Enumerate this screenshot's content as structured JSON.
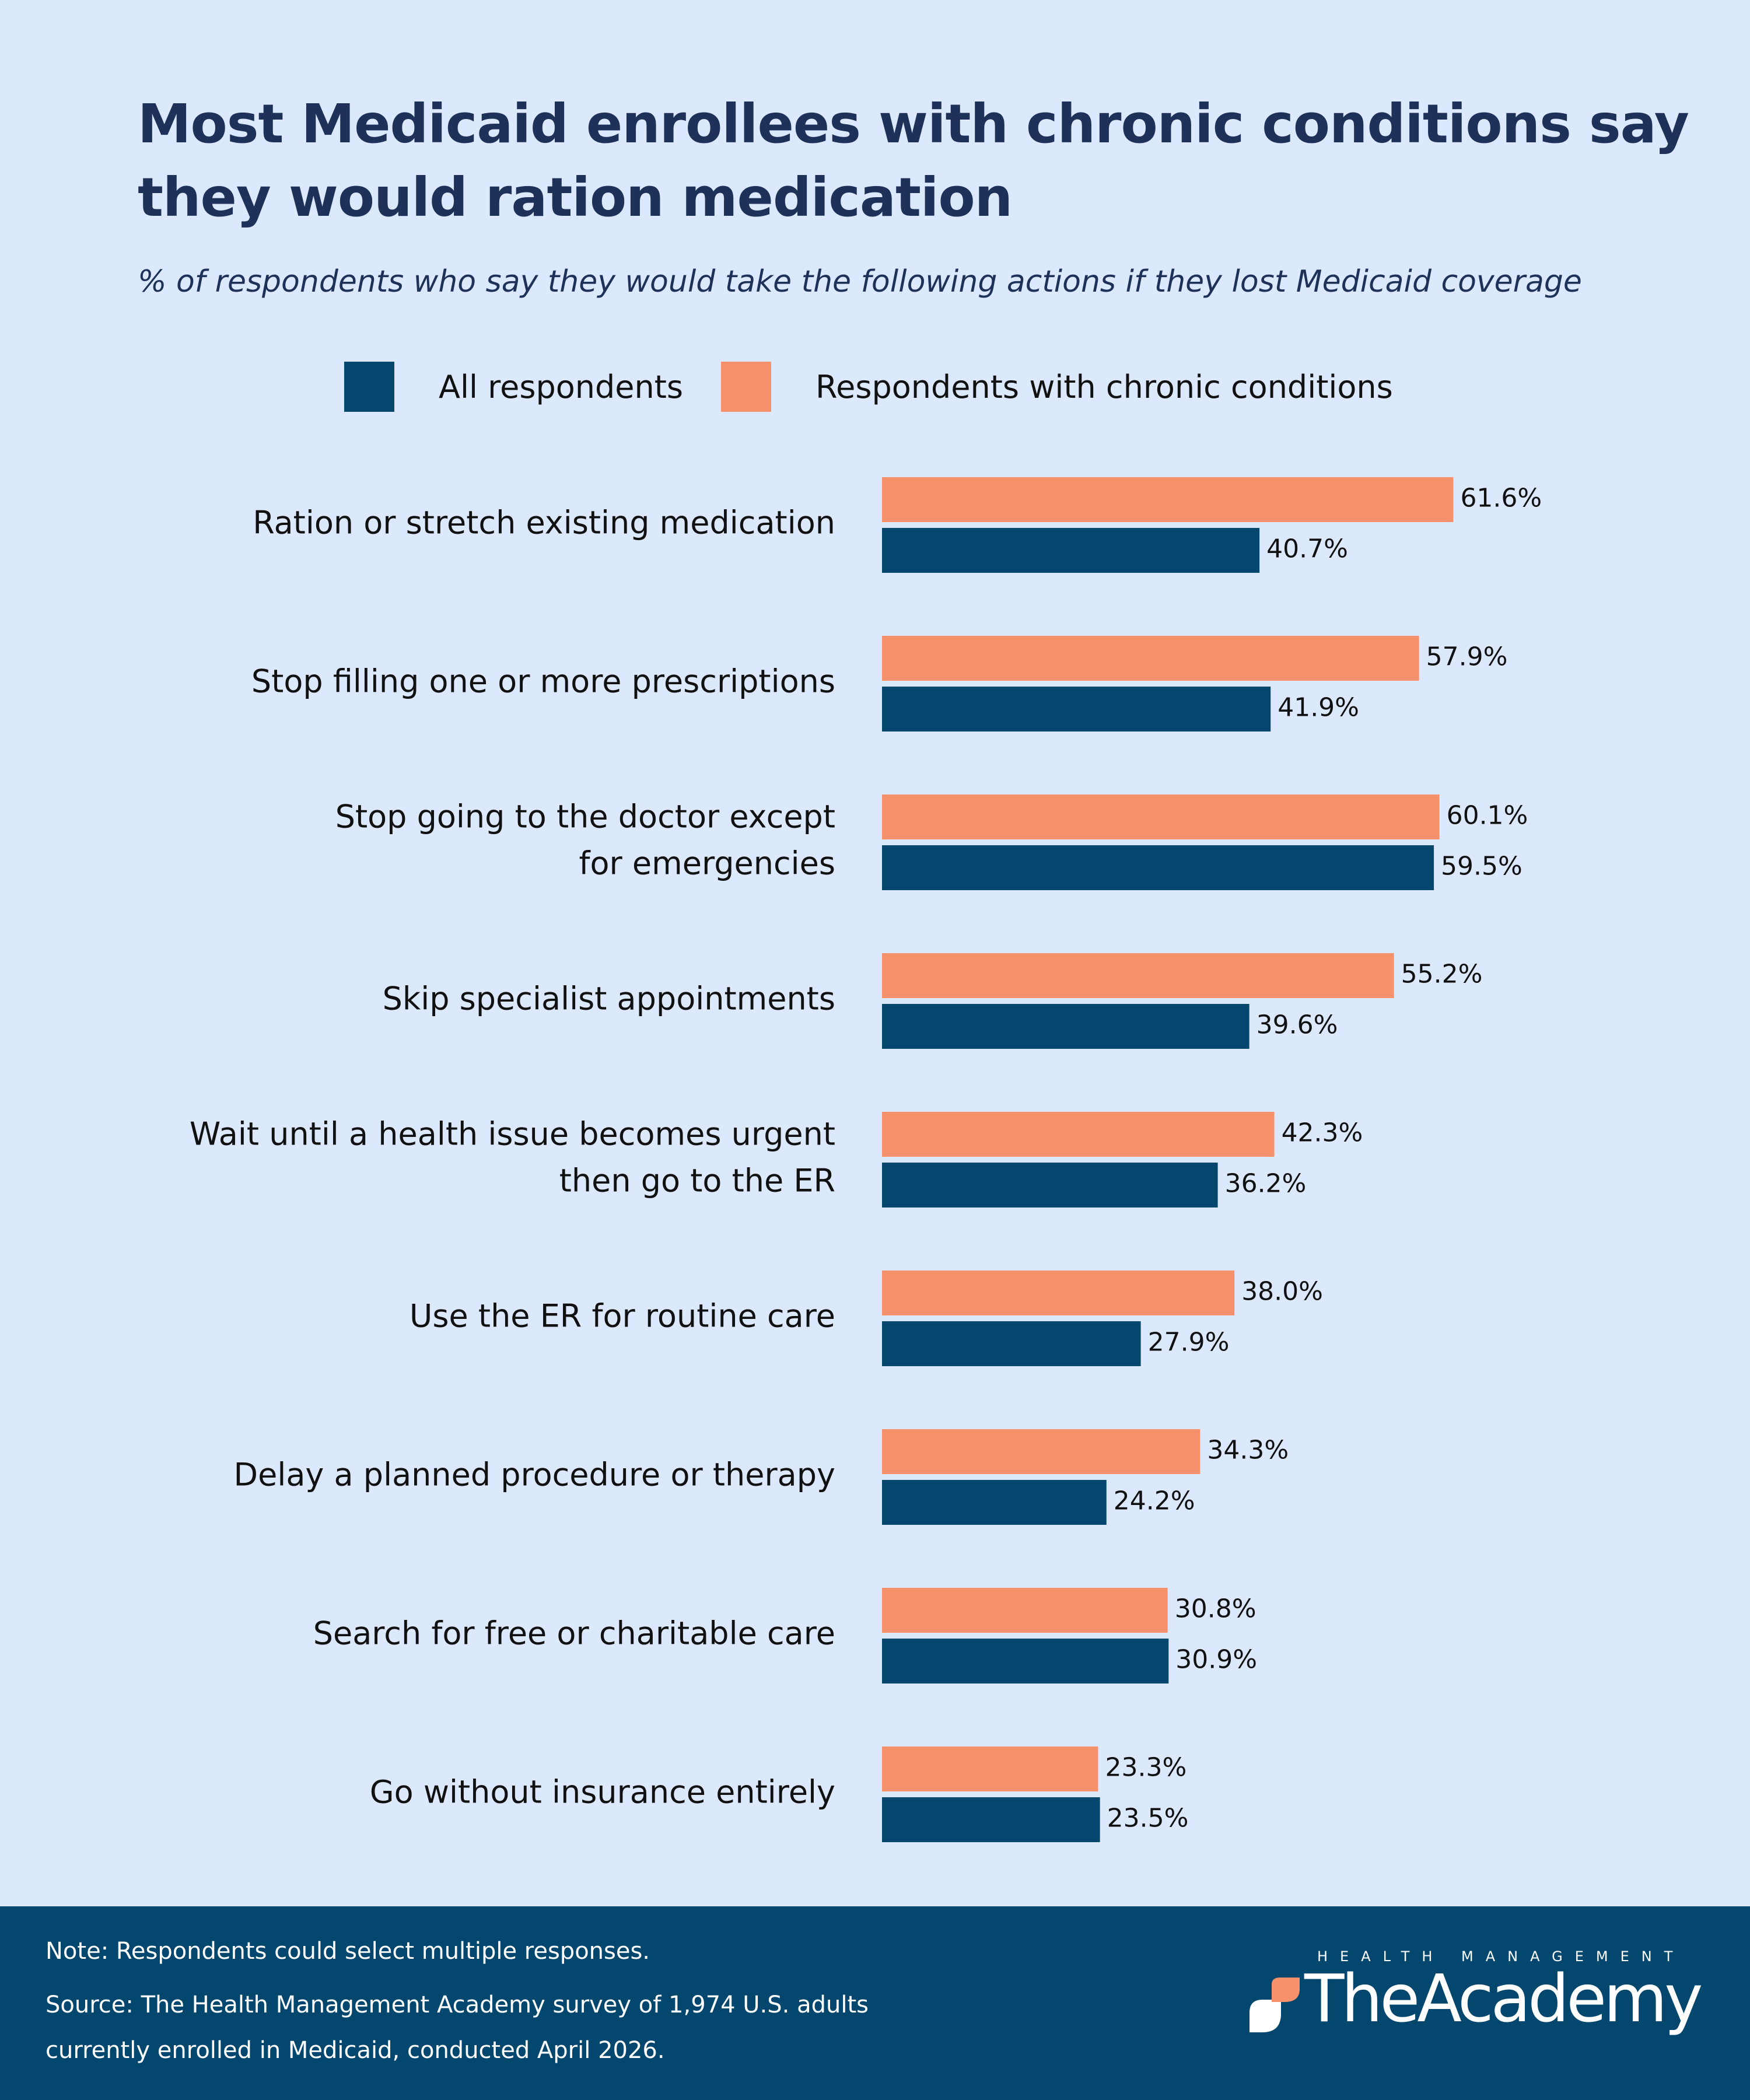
{
  "title": "Most Medicaid enrollees with chronic conditions say they would ration medication",
  "subtitle": "% of respondents who say they would take the following actions if they lost Medicaid coverage",
  "legend": [
    {
      "label": "All respondents",
      "color": "#03476f"
    },
    {
      "label": "Respondents with chronic conditions",
      "color": "#f6916c"
    }
  ],
  "chart_data": {
    "type": "bar",
    "orientation": "horizontal",
    "categories": [
      [
        "Ration or stretch existing medication"
      ],
      [
        "Stop filling one or more prescriptions"
      ],
      [
        "Stop going to the doctor except",
        "for emergencies"
      ],
      [
        "Skip specialist appointments"
      ],
      [
        "Wait until a health issue becomes urgent",
        "then go to the ER"
      ],
      [
        "Use the ER for routine care"
      ],
      [
        "Delay a planned procedure or therapy"
      ],
      [
        "Search for free or charitable care"
      ],
      [
        "Go without insurance entirely"
      ]
    ],
    "series": [
      {
        "name": "Respondents with chronic conditions",
        "color": "#f6916c",
        "values": [
          61.6,
          57.9,
          60.1,
          55.2,
          42.3,
          38.0,
          34.3,
          30.8,
          23.3
        ],
        "labels": [
          "61.6%",
          "57.9%",
          "60.1%",
          "55.2%",
          "42.3%",
          "38.0%",
          "34.3%",
          "30.8%",
          "23.3%"
        ]
      },
      {
        "name": "All respondents",
        "color": "#03476f",
        "values": [
          40.7,
          41.9,
          59.5,
          39.6,
          36.2,
          27.9,
          24.2,
          30.9,
          23.5
        ],
        "labels": [
          "40.7%",
          "41.9%",
          "59.5%",
          "39.6%",
          "36.2%",
          "27.9%",
          "24.2%",
          "30.9%",
          "23.5%"
        ]
      }
    ],
    "xlim": [
      0,
      70
    ],
    "grid": false,
    "legend_position": "top"
  },
  "footer": {
    "note": "Note: Respondents could select multiple responses.",
    "source": "Source: The Health Management Academy survey of 1,974 U.S. adults currently enrolled in Medicaid, conducted April 2026.",
    "logo_small": "HEALTH MANAGEMENT",
    "logo_main": "TheAcademy"
  }
}
